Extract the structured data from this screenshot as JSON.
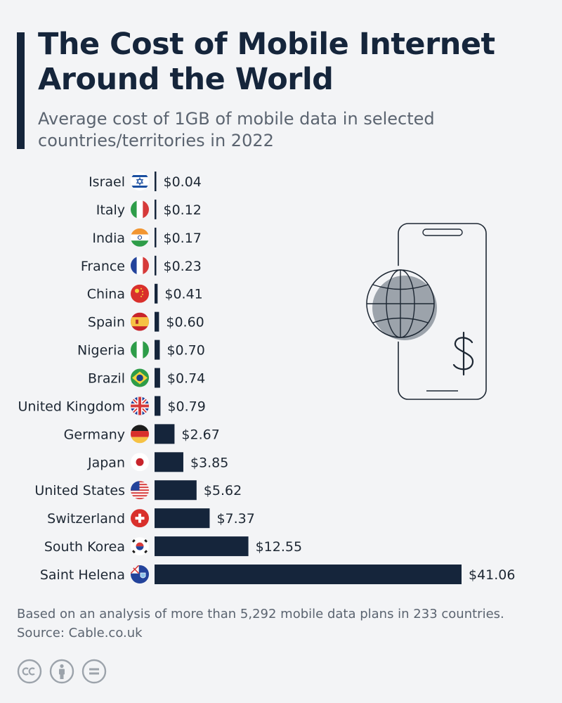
{
  "header": {
    "title": "The Cost of Mobile Internet Around the World",
    "subtitle": "Average cost of 1GB of mobile data in selected countries/territories in 2022"
  },
  "footer": {
    "note": "Based on an analysis of more than 5,292 mobile data plans in 233 countries.",
    "source": "Source: Cable.co.uk"
  },
  "colors": {
    "bar": "#15253b",
    "title": "#15253b",
    "text": "#1d2733",
    "muted": "#5b6470",
    "background": "#f3f4f6",
    "icon_gray": "#9ca3ab"
  },
  "license_icons": [
    "cc-icon",
    "person-icon",
    "equals-icon"
  ],
  "chart_data": {
    "type": "bar",
    "orientation": "horizontal",
    "title": "The Cost of Mobile Internet Around the World",
    "xlabel": "",
    "ylabel": "",
    "value_prefix": "$",
    "xlim": [
      0,
      41.06
    ],
    "categories": [
      "Israel",
      "Italy",
      "India",
      "France",
      "China",
      "Spain",
      "Nigeria",
      "Brazil",
      "United Kingdom",
      "Germany",
      "Japan",
      "United States",
      "Switzerland",
      "South Korea",
      "Saint Helena"
    ],
    "values": [
      0.04,
      0.12,
      0.17,
      0.23,
      0.41,
      0.6,
      0.7,
      0.74,
      0.79,
      2.67,
      3.85,
      5.62,
      7.37,
      12.55,
      41.06
    ],
    "labels": [
      "$0.04",
      "$0.12",
      "$0.17",
      "$0.23",
      "$0.41",
      "$0.60",
      "$0.70",
      "$0.74",
      "$0.79",
      "$2.67",
      "$3.85",
      "$5.62",
      "$7.37",
      "$12.55",
      "$41.06"
    ],
    "flags": [
      "israel-flag-icon",
      "italy-flag-icon",
      "india-flag-icon",
      "france-flag-icon",
      "china-flag-icon",
      "spain-flag-icon",
      "nigeria-flag-icon",
      "brazil-flag-icon",
      "uk-flag-icon",
      "germany-flag-icon",
      "japan-flag-icon",
      "us-flag-icon",
      "switzerland-flag-icon",
      "south-korea-flag-icon",
      "saint-helena-flag-icon"
    ],
    "grid": false,
    "legend": "none"
  }
}
